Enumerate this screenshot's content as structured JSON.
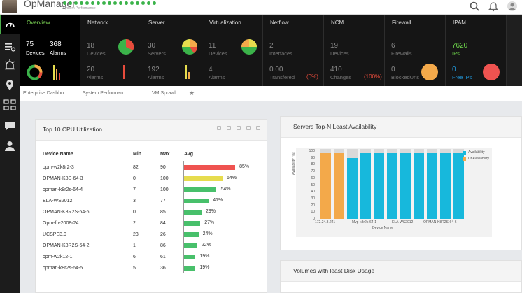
{
  "header": {
    "app_title": "OpManager",
    "subtitle": "System Performance"
  },
  "sidebar": {
    "items": [
      {
        "name": "dashboard-icon"
      },
      {
        "name": "inventory-icon"
      },
      {
        "name": "alarms-icon"
      },
      {
        "name": "maps-icon"
      },
      {
        "name": "apps-icon"
      },
      {
        "name": "chat-icon"
      },
      {
        "name": "user-icon"
      }
    ]
  },
  "tiles": [
    {
      "title": "Overview",
      "v1": "75",
      "l1": "Devices",
      "v2": "368",
      "l2": "Alarms"
    },
    {
      "title": "Network",
      "v1": "18",
      "l1": "Devices",
      "v2": "20",
      "l2": "Alarms"
    },
    {
      "title": "Server",
      "v1": "30",
      "l1": "Servers",
      "v2": "192",
      "l2": "Alarms"
    },
    {
      "title": "Virtualization",
      "v1": "11",
      "l1": "Devices",
      "v2": "4",
      "l2": "Alarms"
    },
    {
      "title": "Netflow",
      "v1": "2",
      "l1": "Interfaces",
      "v2": "0.00",
      "l2": "Transfered",
      "pct": "(0%)"
    },
    {
      "title": "NCM",
      "v1": "19",
      "l1": "Devices",
      "v2": "410",
      "l2": "Changes",
      "pct": "(100%)"
    },
    {
      "title": "Firewall",
      "v1": "6",
      "l1": "Firewalls",
      "v2": "0",
      "l2": "BlockedUrls"
    },
    {
      "title": "IPAM",
      "v1": "7620",
      "l1": "IPs",
      "v2": "0",
      "l2": "Free IPs"
    }
  ],
  "tabs": [
    "Enterprise Dashbo...",
    "System Performan...",
    "VM Sprawl"
  ],
  "cpu_panel": {
    "title": "Top 10 CPU Utilization",
    "headers": {
      "device": "Device Name",
      "min": "Min",
      "max": "Max",
      "avg": "Avg"
    },
    "rows": [
      {
        "name": "opm-w2k8r2-3",
        "min": "82",
        "max": "90",
        "avg": 85,
        "avg_label": "85%",
        "color": "#ef5350"
      },
      {
        "name": "OPMAN-K8S-64-3",
        "min": "0",
        "max": "100",
        "avg": 64,
        "avg_label": "64%",
        "color": "#e6dc4e"
      },
      {
        "name": "opman-k8r2s-64-4",
        "min": "7",
        "max": "100",
        "avg": 54,
        "avg_label": "54%",
        "color": "#48c06b"
      },
      {
        "name": "ELA-WS2012",
        "min": "3",
        "max": "77",
        "avg": 41,
        "avg_label": "41%",
        "color": "#48c06b"
      },
      {
        "name": "OPMAN-K8R2S-64-6",
        "min": "0",
        "max": "85",
        "avg": 29,
        "avg_label": "29%",
        "color": "#48c06b"
      },
      {
        "name": "Opm-fb-2008r24",
        "min": "2",
        "max": "84",
        "avg": 27,
        "avg_label": "27%",
        "color": "#48c06b"
      },
      {
        "name": "UCSPE3.0",
        "min": "23",
        "max": "26",
        "avg": 24,
        "avg_label": "24%",
        "color": "#48c06b"
      },
      {
        "name": "OPMAN-K8R2S-64-2",
        "min": "1",
        "max": "86",
        "avg": 22,
        "avg_label": "22%",
        "color": "#48c06b"
      },
      {
        "name": "opm-w2k12-1",
        "min": "6",
        "max": "61",
        "avg": 19,
        "avg_label": "19%",
        "color": "#48c06b"
      },
      {
        "name": "opman-k8r2s-64-5",
        "min": "5",
        "max": "36",
        "avg": 19,
        "avg_label": "19%",
        "color": "#48c06b"
      }
    ]
  },
  "avail_panel": {
    "title": "Servers Top-N Least Availability"
  },
  "disk_panel": {
    "title": "Volumes with least Disk Usage"
  },
  "chart_data": {
    "type": "bar",
    "stacked": true,
    "title": "Servers Top-N Least Availability",
    "xlabel": "Device Name",
    "ylabel": "Availability (%)",
    "ylim": [
      0,
      100
    ],
    "yticks": [
      "0",
      "10",
      "20",
      "30",
      "40",
      "50",
      "60",
      "70",
      "80",
      "90",
      "100"
    ],
    "x_tick_labels": [
      "172.24.3.241",
      "Mvp-k8r2s-64-1",
      "ELA-WS2012",
      "OPMAN-K8R2S-64-6"
    ],
    "series": [
      {
        "name": "Availability",
        "color": "#17b8dc",
        "values": [
          0,
          0,
          90,
          97,
          97,
          97,
          97,
          97,
          97,
          97,
          97
        ]
      },
      {
        "name": "UnAvailability",
        "color": "#f3a94a",
        "values": [
          97,
          97,
          0,
          0,
          0,
          0,
          0,
          0,
          0,
          0,
          0
        ]
      }
    ],
    "legend": [
      "Availability",
      "UnAvailability"
    ]
  }
}
